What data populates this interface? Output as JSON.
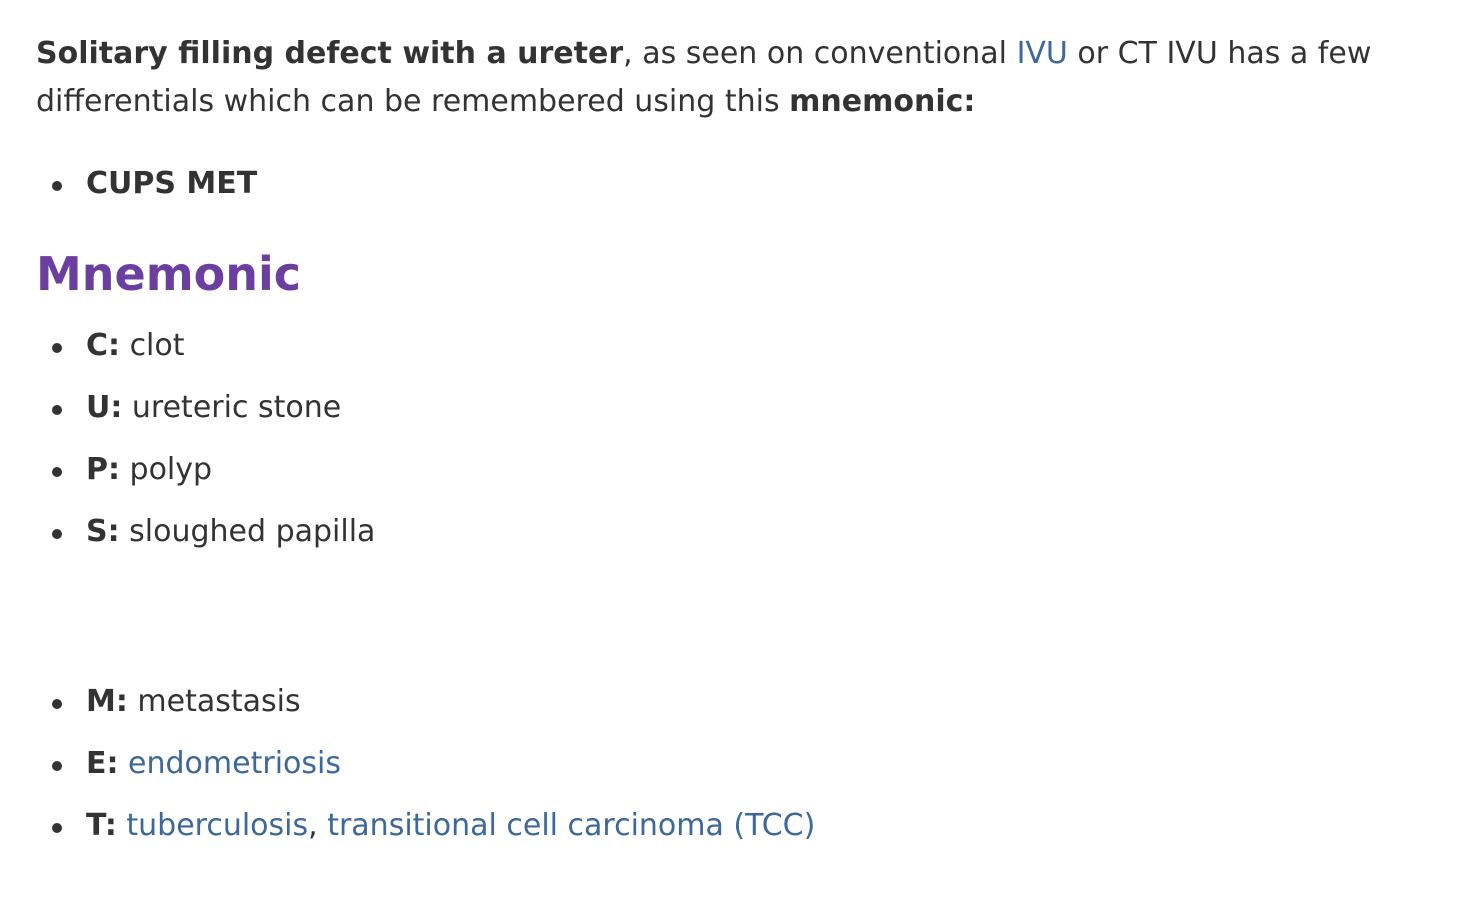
{
  "intro": {
    "bold_lead": "Solitary filling defect with a ureter",
    "text_1": ", as seen on conventional ",
    "link_ivu": "IVU",
    "text_2": " or CT IVU has a few differentials which can be remembered using this ",
    "bold_tail": "mnemonic:"
  },
  "top_list": [
    "CUPS MET"
  ],
  "heading": "Mnemonic",
  "mnemonic": [
    {
      "letter": "C:",
      "text": "clot"
    },
    {
      "letter": "U:",
      "text": "ureteric stone"
    },
    {
      "letter": "P:",
      "text": "polyp"
    },
    {
      "letter": "S:",
      "text": "sloughed papilla"
    }
  ],
  "mnemonic_2": {
    "m": {
      "letter": "M:",
      "text": "metastasis"
    },
    "e": {
      "letter": "E:",
      "link": "endometriosis"
    },
    "t": {
      "letter": "T:",
      "link_1": "tuberculosis",
      "sep": ", ",
      "link_2": "transitional cell carcinoma (TCC)"
    }
  },
  "colors": {
    "text": "#333333",
    "link": "#3d6899",
    "heading": "#6b3fa0"
  }
}
